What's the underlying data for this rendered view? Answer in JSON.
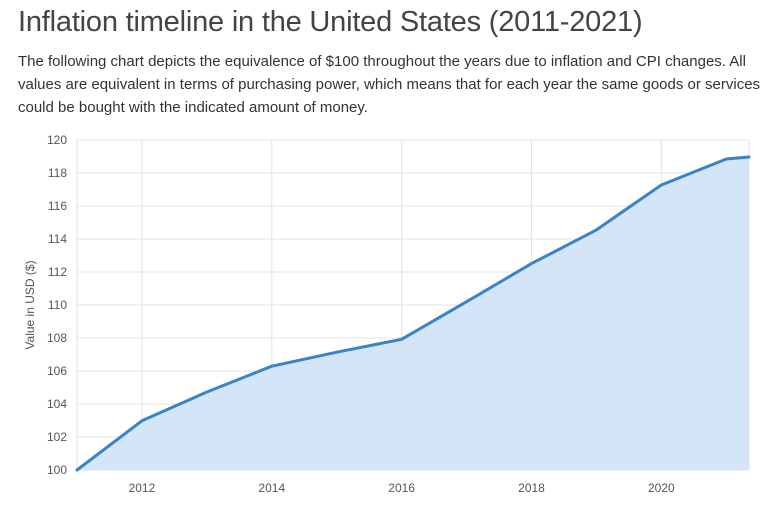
{
  "page": {
    "title": "Inflation timeline in the United States (2011-2021)",
    "description": "The following chart depicts the equivalence of $100 throughout the years due to inflation and CPI changes. All values are equivalent in terms of purchasing power, which means that for each year the same goods or services could be bought with the indicated amount of money."
  },
  "colors": {
    "line": "#3a83c6",
    "fill": "#d3e5f7",
    "grid": "#e3e3e3"
  },
  "chart_data": {
    "type": "area",
    "title": "",
    "xlabel": "",
    "ylabel": "Value in USD ($)",
    "xlim": [
      2011,
      2021.35
    ],
    "ylim": [
      100,
      120
    ],
    "xticks": [
      2012,
      2014,
      2016,
      2018,
      2020
    ],
    "yticks": [
      100,
      102,
      104,
      106,
      108,
      110,
      112,
      114,
      116,
      118,
      120
    ],
    "grid": true,
    "legend": "none",
    "series": [
      {
        "x": [
          2011,
          2012,
          2013,
          2014,
          2015,
          2016,
          2017,
          2018,
          2019,
          2020,
          2021,
          2021.35
        ],
        "values": [
          100,
          102.98,
          104.73,
          106.29,
          107.14,
          107.92,
          110.2,
          112.51,
          114.55,
          117.27,
          118.85,
          118.97
        ]
      }
    ]
  }
}
